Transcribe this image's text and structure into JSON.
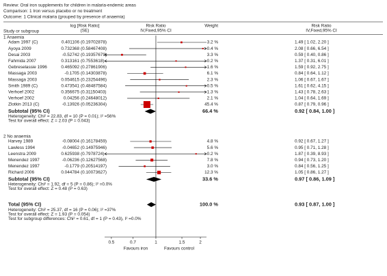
{
  "chart_data": {
    "type": "forest",
    "review": "Review:  Oral iron supplements for children in malaria-endemic areas",
    "comparison": "Comparison:  1 Iron versus placebo or no treatment",
    "outcome": "Outcome:  1 Clinical malaria (grouped by presence of anaemia)",
    "col_study": "Study or subgroup",
    "col_log": "log [Risk Ratio]",
    "col_se": "(SE)",
    "col_plot": "Risk Ratio",
    "col_plot_sub": "IV,Fixed,95% CI",
    "col_weight": "Weight",
    "col_ci": "Risk Ratio",
    "col_ci_sub": "IV,Fixed,95% CI",
    "x_scale": "log",
    "xlim": [
      0.45,
      2.2
    ],
    "xticks": [
      0.5,
      0.7,
      1,
      1.5,
      2
    ],
    "reference_line": 1,
    "box_color": "#cc0000",
    "favours_left": "Favours iron",
    "favours_right": "Favours control",
    "subgroups": [
      {
        "title": "1 Anaemia",
        "studies": [
          {
            "name": "Adam 1997 (C)",
            "log_rr": 0.401106,
            "se": "(0.19702878)",
            "weight": 3.2,
            "weight_label": "3.2 %",
            "rr": 1.49,
            "lo": 1.02,
            "hi": 2.2,
            "ci_label": "1.49 [ 1.02, 2.20 ]"
          },
          {
            "name": "Ayoya 2009",
            "log_rr": 0.732368,
            "se": "(0.58467408)",
            "weight": 0.4,
            "weight_label": "0.4 %",
            "rr": 2.08,
            "lo": 0.66,
            "hi": 6.54,
            "ci_label": "2.08 [ 0.66, 6.54 ]"
          },
          {
            "name": "Desai 2003",
            "log_rr": -0.52742,
            "se": "(0.19357679)",
            "weight": 3.3,
            "weight_label": "3.3 %",
            "rr": 0.59,
            "lo": 0.4,
            "hi": 0.86,
            "ci_label": "0.59 [ 0.40, 0.86 ]"
          },
          {
            "name": "Fahmida 2007",
            "log_rr": 0.313161,
            "se": "(0.7553618)",
            "weight": 0.2,
            "weight_label": "0.2 %",
            "rr": 1.37,
            "lo": 0.31,
            "hi": 6.01,
            "ci_label": "1.37 [ 0.31, 6.01 ]"
          },
          {
            "name": "Gebreselassie 1996",
            "log_rr": 0.465092,
            "se": "(0.27861906)",
            "weight": 1.6,
            "weight_label": "1.6 %",
            "rr": 1.59,
            "lo": 0.92,
            "hi": 2.75,
            "ci_label": "1.59 [ 0.92, 2.75 ]"
          },
          {
            "name": "Massaga 2003",
            "log_rr": -0.1705,
            "se": "(0.14303878)",
            "weight": 6.1,
            "weight_label": "6.1 %",
            "rr": 0.84,
            "lo": 0.64,
            "hi": 1.12,
            "ci_label": "0.84 [ 0.64, 1.12 ]"
          },
          {
            "name": "Massaga 2003",
            "log_rr": 0.054615,
            "se": "(0.23254496)",
            "weight": 2.3,
            "weight_label": "2.3 %",
            "rr": 1.06,
            "lo": 0.67,
            "hi": 1.67,
            "ci_label": "1.06 [ 0.67, 1.67 ]"
          },
          {
            "name": "Smith 1989 (C)",
            "log_rr": 0.473541,
            "se": "(0.48487584)",
            "weight": 0.5,
            "weight_label": "0.5 %",
            "rr": 1.61,
            "lo": 0.62,
            "hi": 4.15,
            "ci_label": "1.61 [ 0.62, 4.15 ]"
          },
          {
            "name": "Verhoef 2002",
            "log_rr": 0.356675,
            "se": "(0.31150403)",
            "weight": 1.3,
            "weight_label": "1.3 %",
            "rr": 1.43,
            "lo": 0.78,
            "hi": 2.63,
            "ci_label": "1.43 [ 0.78, 2.63 ]"
          },
          {
            "name": "Verhoef 2002",
            "log_rr": 0.04256,
            "se": "(0.24648012)",
            "weight": 2.1,
            "weight_label": "2.1 %",
            "rr": 1.04,
            "lo": 0.64,
            "hi": 1.69,
            "ci_label": "1.04 [ 0.64, 1.69 ]"
          },
          {
            "name": "Zlotkin 2013 (C)",
            "log_rr": -0.13926,
            "se": "(0.05236304)",
            "weight": 45.4,
            "weight_label": "45.4 %",
            "rr": 0.87,
            "lo": 0.79,
            "hi": 0.96,
            "ci_label": "0.87 [ 0.79, 0.96 ]"
          }
        ],
        "subtotal": {
          "name": "Subtotal (95% CI)",
          "weight": 66.4,
          "weight_label": "66.4 %",
          "rr": 0.92,
          "lo": 0.84,
          "hi": 1.0,
          "ci_label": "0.92 [ 0.84, 1.00 ]"
        },
        "heterogeneity": "Heterogeneity: Chi² = 22.83, df = 10 (P = 0.01); I² =56%",
        "test": "Test for overall effect: Z = 2.03 (P = 0.043)"
      },
      {
        "title": "2 No anaemia",
        "studies": [
          {
            "name": "Harvey 1989",
            "log_rr": -0.08004,
            "se": "(0.16178459)",
            "weight": 4.8,
            "weight_label": "4.8 %",
            "rr": 0.92,
            "lo": 0.67,
            "hi": 1.27,
            "ci_label": "0.92 [ 0.67, 1.27 ]"
          },
          {
            "name": "Lawless 1994",
            "log_rr": -0.04652,
            "se": "(0.14975946)",
            "weight": 5.6,
            "weight_label": "5.6 %",
            "rr": 0.95,
            "lo": 0.71,
            "hi": 1.28,
            "ci_label": "0.95 [ 0.71, 1.28 ]"
          },
          {
            "name": "Leenstra 2009",
            "log_rr": 0.625938,
            "se": "(0.7978724)",
            "weight": 0.2,
            "weight_label": "0.2 %",
            "rr": 1.87,
            "lo": 0.39,
            "hi": 8.93,
            "ci_label": "1.87 [ 0.39, 8.93 ]"
          },
          {
            "name": "Menendez 1997",
            "log_rr": -0.06236,
            "se": "(0.12627568)",
            "weight": 7.8,
            "weight_label": "7.8 %",
            "rr": 0.94,
            "lo": 0.73,
            "hi": 1.2,
            "ci_label": "0.94 [ 0.73, 1.20 ]"
          },
          {
            "name": "Menendez 1997",
            "log_rr": -0.1779,
            "se": "(0.20514197)",
            "weight": 3.0,
            "weight_label": "3.0 %",
            "rr": 0.84,
            "lo": 0.56,
            "hi": 1.25,
            "ci_label": "0.84 [ 0.56, 1.25 ]"
          },
          {
            "name": "Richard 2006",
            "log_rr": 0.044784,
            "se": "(0.10073627)",
            "weight": 12.3,
            "weight_label": "12.3 %",
            "rr": 1.05,
            "lo": 0.86,
            "hi": 1.27,
            "ci_label": "1.05 [ 0.86, 1.27 ]"
          }
        ],
        "subtotal": {
          "name": "Subtotal (95% CI)",
          "weight": 33.6,
          "weight_label": "33.6 %",
          "rr": 0.97,
          "lo": 0.86,
          "hi": 1.09,
          "ci_label": "0.97 [ 0.86, 1.09 ]"
        },
        "heterogeneity": "Heterogeneity: Chi² = 1.92, df = 5 (P = 0.86); I² =0.0%",
        "test": "Test for overall effect: Z = 0.48 (P = 0.63)"
      }
    ],
    "total": {
      "name": "Total (95% CI)",
      "weight": 100.0,
      "weight_label": "100.0 %",
      "rr": 0.93,
      "lo": 0.87,
      "hi": 1.0,
      "ci_label": "0.93 [ 0.87, 1.00 ]",
      "heterogeneity": "Heterogeneity: Chi² = 25.37, df = 16 (P = 0.06); I² =37%",
      "test": "Test for overall effect: Z = 1.93 (P = 0.054)",
      "subgroup_differences": "Test for subgroup differences: Chi² = 0.61, df = 1 (P = 0.43), I² =0.0%"
    }
  }
}
